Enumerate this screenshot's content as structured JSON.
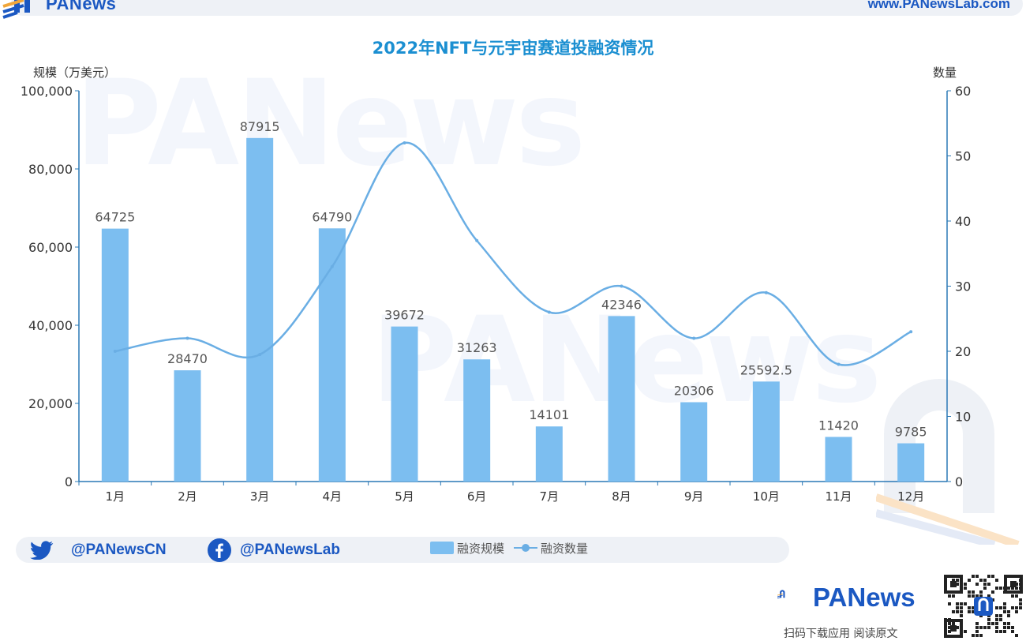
{
  "header": {
    "logo_text": "PANews",
    "url": "www.PANewsLab.com"
  },
  "watermark_text": "PANews",
  "chart_data": {
    "type": "bar",
    "title": "2022年NFT与元宇宙赛道投融资情况",
    "categories": [
      "1月",
      "2月",
      "3月",
      "4月",
      "5月",
      "6月",
      "7月",
      "8月",
      "9月",
      "10月",
      "11月",
      "12月"
    ],
    "series": [
      {
        "name": "融资规模",
        "type": "bar",
        "axis": "left",
        "values": [
          64725,
          28470,
          87915,
          64790,
          39672,
          31263,
          14101,
          42346,
          20306,
          25592.5,
          11420,
          9785
        ],
        "labels": [
          "64725",
          "28470",
          "87915",
          "64790",
          "39672",
          "31263",
          "14101",
          "42346",
          "20306",
          "25592.5",
          "11420",
          "9785"
        ]
      },
      {
        "name": "融资数量",
        "type": "line",
        "axis": "right",
        "smooth": true,
        "values": [
          20,
          22,
          19.5,
          33,
          52,
          37,
          26,
          30,
          22,
          29,
          18,
          23
        ]
      }
    ],
    "left_axis": {
      "label": "规模（万美元）",
      "range": [
        0,
        100000
      ],
      "ticks": [
        "0",
        "20,000",
        "40,000",
        "60,000",
        "80,000",
        "100,000"
      ]
    },
    "right_axis": {
      "label": "数量",
      "range": [
        0,
        60
      ],
      "ticks": [
        "0",
        "10",
        "20",
        "30",
        "40",
        "50",
        "60"
      ]
    },
    "colors": {
      "bar": "#7cbef0",
      "line": "#6aaee4",
      "axis": "#2a78b5",
      "title": "#1b8fd1"
    },
    "legend_position": "bottom-center"
  },
  "footer": {
    "twitter": "@PANewsCN",
    "facebook": "@PANewsLab",
    "legend": {
      "bar_label": "融资规模",
      "line_label": "融资数量"
    }
  },
  "brand": {
    "name": "PANews",
    "cta": "扫码下载应用  阅读原文"
  }
}
